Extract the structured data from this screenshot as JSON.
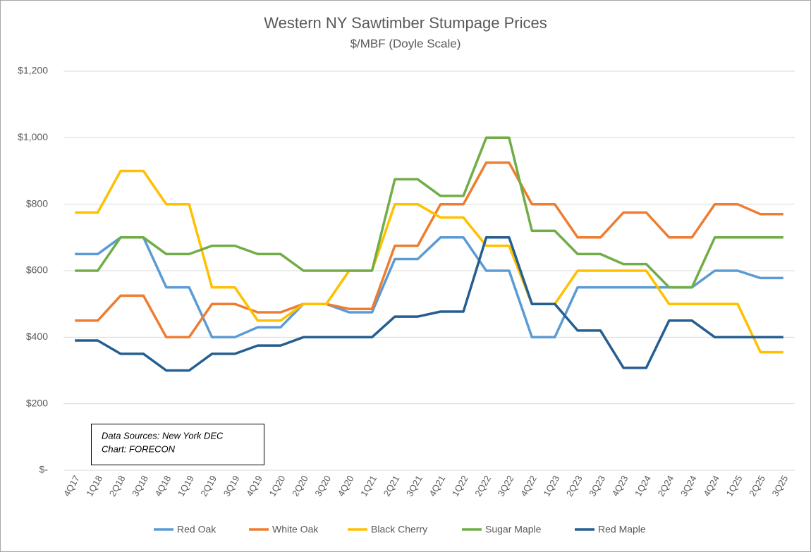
{
  "chart_data": {
    "type": "line",
    "title": "Western NY Sawtimber Stumpage Prices",
    "subtitle": "$/MBF (Doyle Scale)",
    "annotation": [
      "Data Sources: New York DEC",
      "Chart: FORECON"
    ],
    "categories": [
      "4Q17",
      "1Q18",
      "2Q18",
      "3Q18",
      "4Q18",
      "1Q19",
      "2Q19",
      "3Q19",
      "4Q19",
      "1Q20",
      "2Q20",
      "3Q20",
      "4Q20",
      "1Q21",
      "2Q21",
      "3Q21",
      "4Q21",
      "1Q22",
      "2Q22",
      "3Q22",
      "4Q22",
      "1Q23",
      "2Q23",
      "3Q23",
      "4Q23",
      "1Q24",
      "2Q24",
      "3Q24",
      "4Q24",
      "1Q25",
      "2Q25",
      "3Q25"
    ],
    "series": [
      {
        "name": "Red Oak",
        "color": "#5b9bd5",
        "values": [
          650,
          650,
          700,
          700,
          550,
          550,
          400,
          400,
          430,
          430,
          500,
          500,
          475,
          475,
          635,
          635,
          700,
          700,
          600,
          600,
          400,
          400,
          550,
          550,
          550,
          550,
          550,
          550,
          600,
          600,
          578,
          578
        ]
      },
      {
        "name": "White Oak",
        "color": "#ed7d31",
        "values": [
          450,
          450,
          525,
          525,
          400,
          400,
          500,
          500,
          475,
          475,
          500,
          500,
          485,
          485,
          675,
          675,
          800,
          800,
          925,
          925,
          800,
          800,
          700,
          700,
          775,
          775,
          700,
          700,
          800,
          800,
          770,
          770
        ]
      },
      {
        "name": "Black Cherry",
        "color": "#ffc000",
        "values": [
          775,
          775,
          900,
          900,
          800,
          800,
          550,
          550,
          450,
          450,
          500,
          500,
          600,
          600,
          800,
          800,
          760,
          760,
          675,
          675,
          500,
          500,
          600,
          600,
          600,
          600,
          500,
          500,
          500,
          500,
          355,
          355
        ]
      },
      {
        "name": "Sugar Maple",
        "color": "#70ad47",
        "values": [
          600,
          600,
          700,
          700,
          650,
          650,
          675,
          675,
          650,
          650,
          600,
          600,
          600,
          600,
          875,
          875,
          825,
          825,
          1000,
          1000,
          720,
          720,
          650,
          650,
          620,
          620,
          550,
          550,
          700,
          700,
          700,
          700
        ]
      },
      {
        "name": "Red Maple",
        "color": "#255e91",
        "values": [
          390,
          390,
          350,
          350,
          300,
          300,
          350,
          350,
          375,
          375,
          400,
          400,
          400,
          400,
          462,
          462,
          477,
          477,
          700,
          700,
          500,
          500,
          420,
          420,
          308,
          308,
          450,
          450,
          400,
          400,
          400,
          400
        ]
      }
    ],
    "ylim": [
      0,
      1200
    ],
    "yticks": [
      {
        "value": 0,
        "label": "$-"
      },
      {
        "value": 200,
        "label": "$200"
      },
      {
        "value": 400,
        "label": "$400"
      },
      {
        "value": 600,
        "label": "$600"
      },
      {
        "value": 800,
        "label": "$800"
      },
      {
        "value": 1000,
        "label": "$1,000"
      },
      {
        "value": 1200,
        "label": "$1,200"
      }
    ],
    "grid": true,
    "legend": "bottom"
  }
}
